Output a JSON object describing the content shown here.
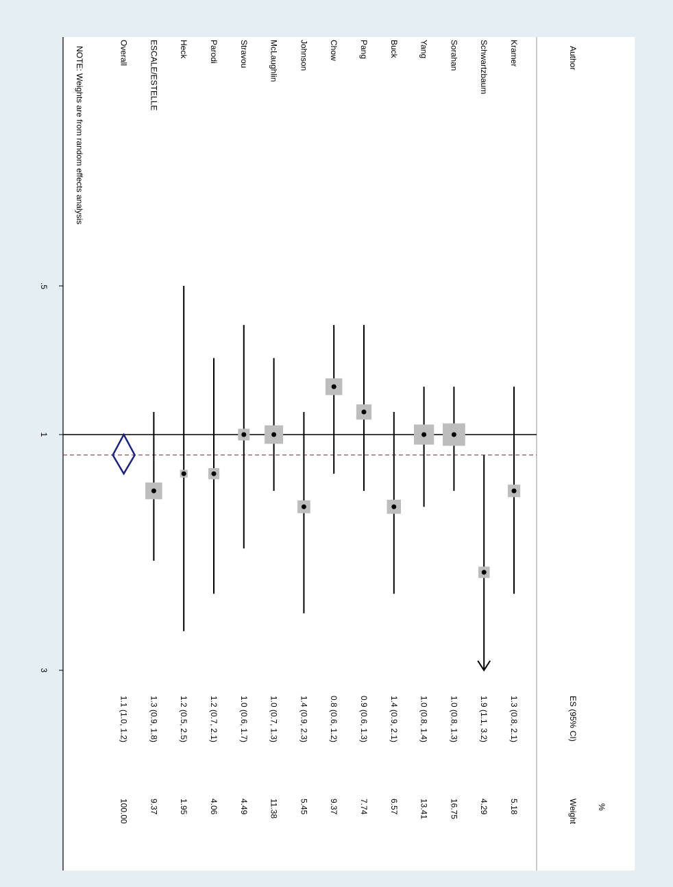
{
  "chart_data": {
    "type": "forest",
    "headers": {
      "author": "Author",
      "es": "ES (95% CI)",
      "weight_top": "%",
      "weight": "Weight"
    },
    "x_axis": {
      "scale": "log",
      "ticks": [
        {
          "value": 0.5,
          "label": ".5"
        },
        {
          "value": 1,
          "label": "1"
        },
        {
          "value": 3,
          "label": "3"
        }
      ],
      "null_value": 1
    },
    "studies": [
      {
        "author": "Kramer",
        "es": 1.3,
        "lo": 0.8,
        "hi": 2.1,
        "es_text": "1.3 (0.8, 2.1)",
        "weight": "5.18"
      },
      {
        "author": "Schwartzbaum",
        "es": 1.9,
        "lo": 1.1,
        "hi": 3.2,
        "es_text": "1.9 (1.1, 3.2)",
        "weight": "4.29",
        "arrow_hi": true
      },
      {
        "author": "Sorahan",
        "es": 1.0,
        "lo": 0.8,
        "hi": 1.3,
        "es_text": "1.0 (0.8, 1.3)",
        "weight": "16.75"
      },
      {
        "author": "Yang",
        "es": 1.0,
        "lo": 0.8,
        "hi": 1.4,
        "es_text": "1.0 (0.8, 1.4)",
        "weight": "13.41"
      },
      {
        "author": "Buck",
        "es": 1.4,
        "lo": 0.9,
        "hi": 2.1,
        "es_text": "1.4 (0.9, 2.1)",
        "weight": "6.57"
      },
      {
        "author": "Pang",
        "es": 0.9,
        "lo": 0.6,
        "hi": 1.3,
        "es_text": "0.9 (0.6, 1.3)",
        "weight": "7.74"
      },
      {
        "author": "Chow",
        "es": 0.8,
        "lo": 0.6,
        "hi": 1.2,
        "es_text": "0.8 (0.6, 1.2)",
        "weight": "9.37"
      },
      {
        "author": "Johnson",
        "es": 1.4,
        "lo": 0.9,
        "hi": 2.3,
        "es_text": "1.4 (0.9, 2.3)",
        "weight": "5.45"
      },
      {
        "author": "McLaughlin",
        "es": 1.0,
        "lo": 0.7,
        "hi": 1.3,
        "es_text": "1.0 (0.7, 1.3)",
        "weight": "11.38"
      },
      {
        "author": "Stravou",
        "es": 1.0,
        "lo": 0.6,
        "hi": 1.7,
        "es_text": "1.0 (0.6, 1.7)",
        "weight": "4.49"
      },
      {
        "author": "Parodi",
        "es": 1.2,
        "lo": 0.7,
        "hi": 2.1,
        "es_text": "1.2 (0.7, 2.1)",
        "weight": "4.06"
      },
      {
        "author": "Heck",
        "es": 1.2,
        "lo": 0.5,
        "hi": 2.5,
        "es_text": "1.2 (0.5, 2.5)",
        "weight": "1.95"
      },
      {
        "author": "ESCALE/ESTELLE",
        "es": 1.3,
        "lo": 0.9,
        "hi": 1.8,
        "es_text": "1.3 (0.9, 1.8)",
        "weight": "9.37"
      }
    ],
    "overall": {
      "author": "Overall",
      "es": 1.1,
      "lo": 1.0,
      "hi": 1.2,
      "es_text": "1.1 (1.0, 1.2)",
      "weight": "100.00"
    },
    "note": "NOTE: Weights are from random effects analysis",
    "colors": {
      "page_bg": "#e5eef3",
      "plot_bg": "#ffffff",
      "box": "#bdbdbd",
      "diamond": "#1a237e",
      "overall_line": "#8b3a3a",
      "line": "#000000"
    }
  }
}
